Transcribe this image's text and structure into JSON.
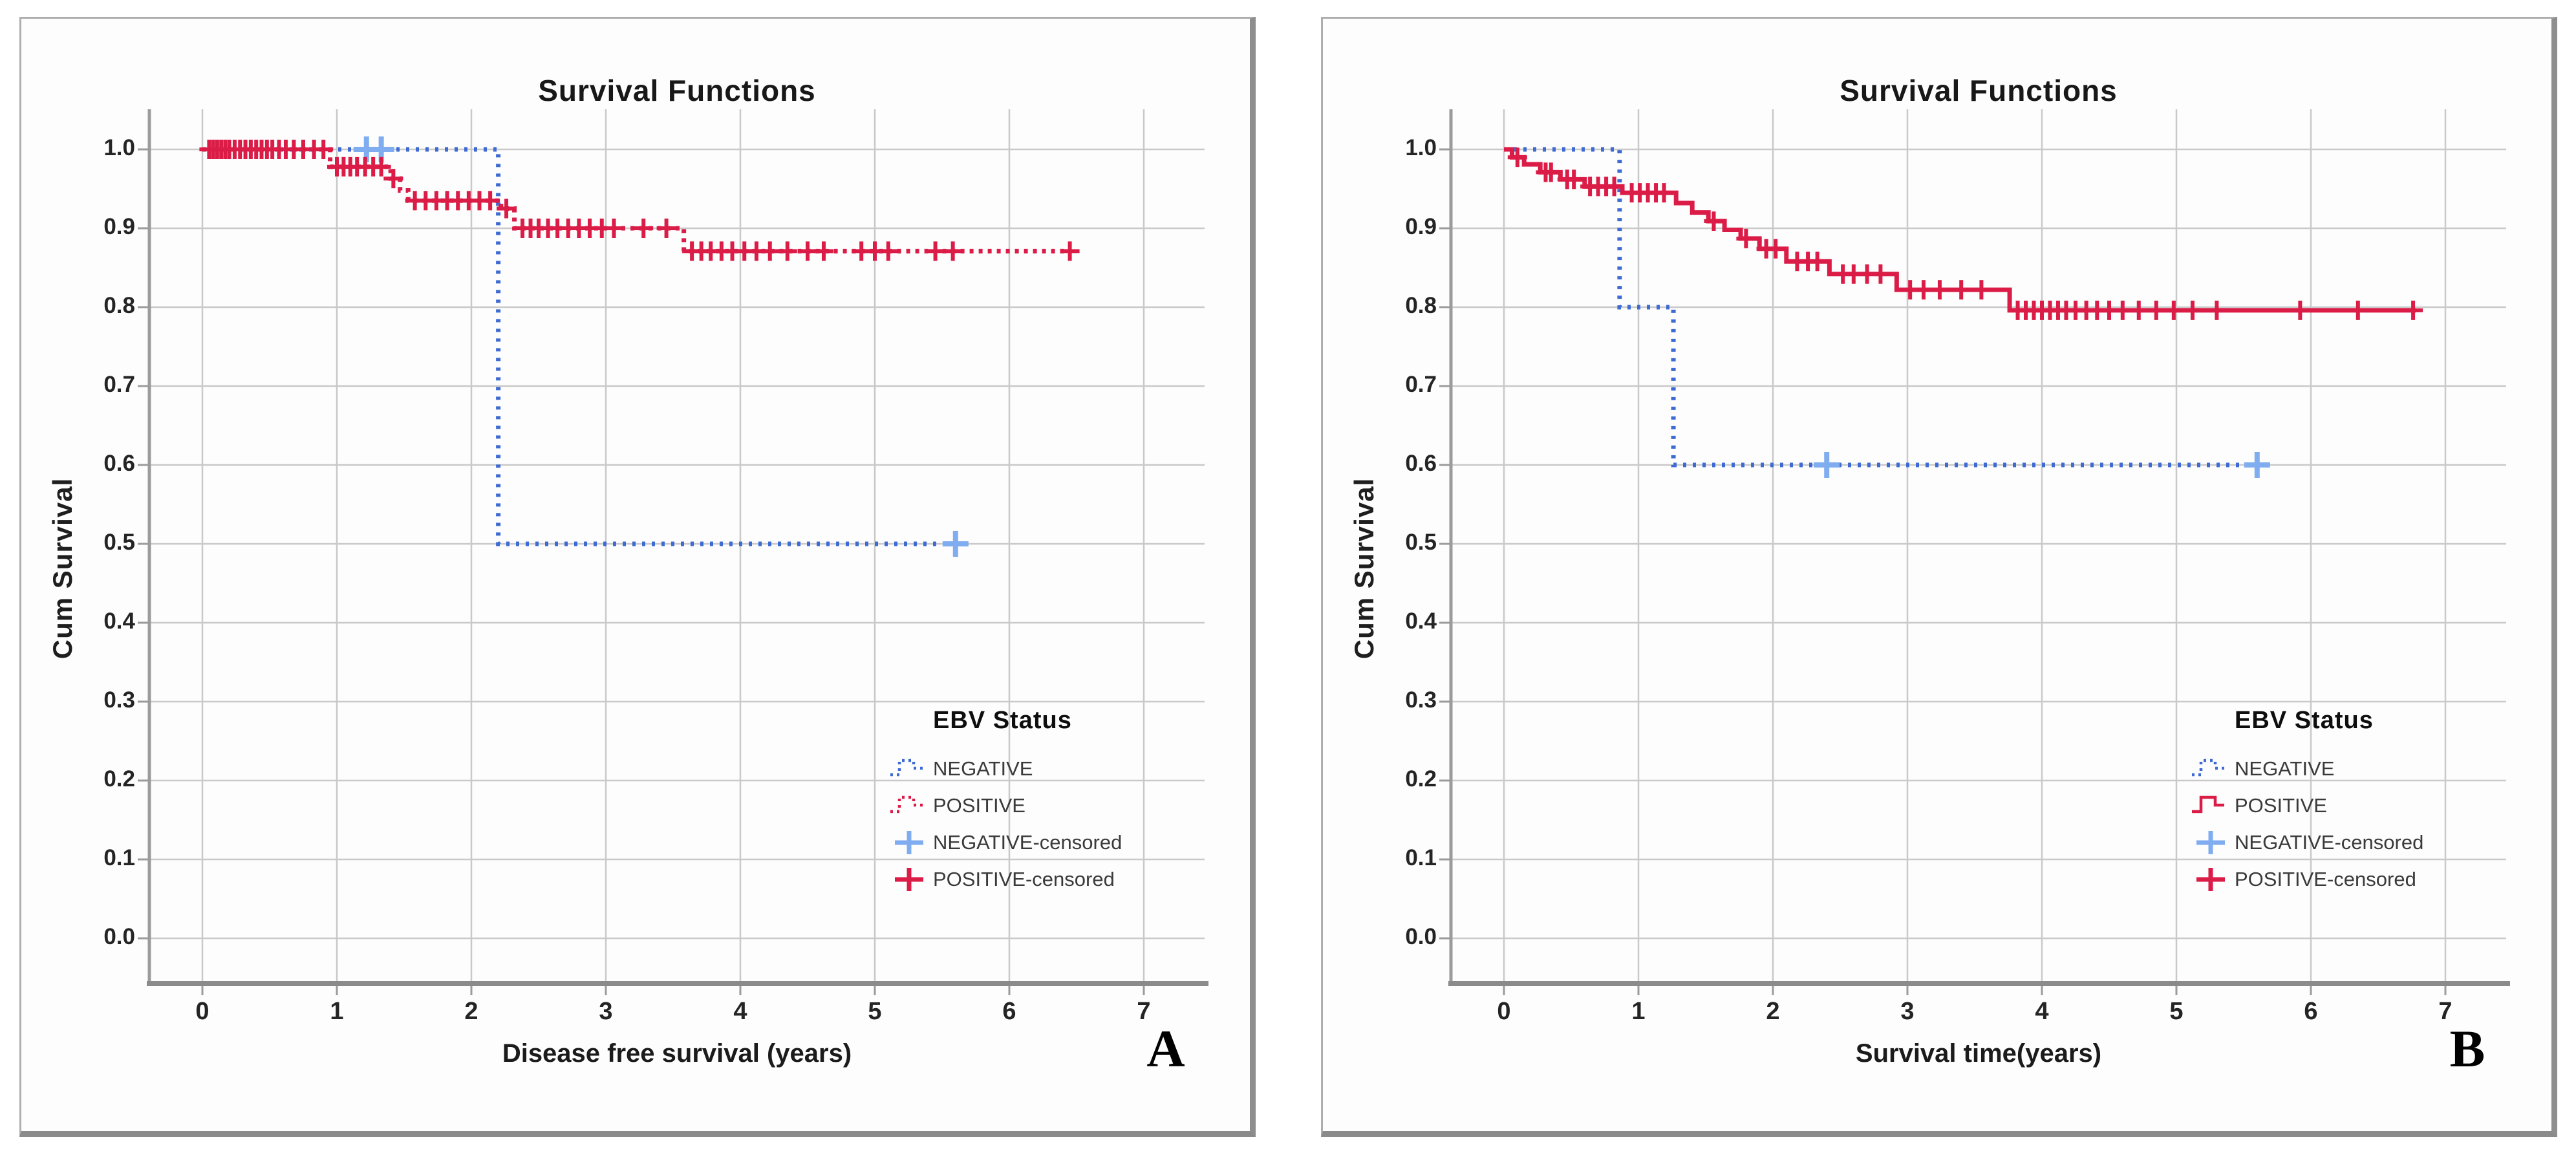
{
  "page": {
    "background": "#ffffff"
  },
  "chart_data": [
    {
      "type": "line",
      "subtype": "kaplan-meier-step",
      "panel_letter": "A",
      "title": "Survival Functions",
      "xlabel": "Disease free survival (years)",
      "ylabel": "Cum Survival",
      "xlim": [
        -0.4,
        7.45
      ],
      "ylim": [
        -0.06,
        1.05
      ],
      "grid": true,
      "xticks": [
        0,
        1,
        2,
        3,
        4,
        5,
        6,
        7
      ],
      "xtick_labels": [
        "0",
        "1",
        "2",
        "3",
        "4",
        "5",
        "6",
        "7"
      ],
      "yticks": [
        {
          "value": 1.0,
          "label": "1.0"
        },
        {
          "value": 0.9,
          "label": "0.9"
        },
        {
          "value": 0.8,
          "label": "0.8"
        },
        {
          "value": 0.7,
          "label": "0.7"
        },
        {
          "value": 0.6,
          "label": "0.6"
        },
        {
          "value": 0.5,
          "label": "0.5"
        },
        {
          "value": 0.4,
          "label": "0.4"
        },
        {
          "value": 0.3,
          "label": "0.3"
        },
        {
          "value": 0.2,
          "label": "0.2"
        },
        {
          "value": 0.1,
          "label": "0.1"
        },
        {
          "value": 0.0,
          "label": "0.0"
        }
      ],
      "colors": {
        "grid": "#c9c9c9",
        "axis": "#9b9b9b",
        "axis_dark": "#8b8b8b"
      },
      "legend": {
        "title": "EBV Status",
        "position": "lower right",
        "entries": [
          {
            "label": "NEGATIVE",
            "glyph": "step-line",
            "dash": "dotted",
            "color": "#3d6bd3"
          },
          {
            "label": "POSITIVE",
            "glyph": "step-line",
            "dash": "dotted",
            "color": "#da1c47"
          },
          {
            "label": "NEGATIVE-censored",
            "glyph": "plus",
            "color": "#7fadf0"
          },
          {
            "label": "POSITIVE-censored",
            "glyph": "plus",
            "color": "#da1c47"
          }
        ]
      },
      "series": [
        {
          "name": "NEGATIVE",
          "color": "#3d6bd3",
          "dash": "dotted",
          "dash_array": "5 10",
          "line_width": 7,
          "censor_color": "#7fadf0",
          "censor_arm": 20,
          "censor_stroke": 8,
          "steps": [
            [
              0,
              1.0
            ],
            [
              2.2,
              0.5
            ],
            [
              5.6,
              0.5
            ]
          ],
          "censored": [
            [
              1.22,
              1.0
            ],
            [
              1.33,
              1.0
            ],
            [
              5.6,
              0.5
            ]
          ]
        },
        {
          "name": "POSITIVE",
          "color": "#da1c47",
          "dash": "dotted",
          "dash_array": "6 8",
          "line_width": 7,
          "censor_color": "#da1c47",
          "censor_arm": 15,
          "censor_stroke": 6,
          "steps": [
            [
              0,
              1.0
            ],
            [
              0.95,
              0.978
            ],
            [
              1.4,
              0.963
            ],
            [
              1.47,
              0.948
            ],
            [
              1.53,
              0.935
            ],
            [
              2.22,
              0.925
            ],
            [
              2.32,
              0.9
            ],
            [
              3.58,
              0.871
            ],
            [
              6.45,
              0.871
            ]
          ],
          "censored": [
            [
              0.05,
              1.0
            ],
            [
              0.08,
              1.0
            ],
            [
              0.11,
              1.0
            ],
            [
              0.14,
              1.0
            ],
            [
              0.17,
              1.0
            ],
            [
              0.2,
              1.0
            ],
            [
              0.24,
              1.0
            ],
            [
              0.28,
              1.0
            ],
            [
              0.32,
              1.0
            ],
            [
              0.36,
              1.0
            ],
            [
              0.4,
              1.0
            ],
            [
              0.44,
              1.0
            ],
            [
              0.48,
              1.0
            ],
            [
              0.52,
              1.0
            ],
            [
              0.57,
              1.0
            ],
            [
              0.62,
              1.0
            ],
            [
              0.68,
              1.0
            ],
            [
              0.75,
              1.0
            ],
            [
              0.83,
              1.0
            ],
            [
              0.9,
              1.0
            ],
            [
              1.0,
              0.978
            ],
            [
              1.05,
              0.978
            ],
            [
              1.1,
              0.978
            ],
            [
              1.15,
              0.978
            ],
            [
              1.21,
              0.978
            ],
            [
              1.27,
              0.978
            ],
            [
              1.33,
              0.978
            ],
            [
              1.42,
              0.963
            ],
            [
              1.58,
              0.935
            ],
            [
              1.66,
              0.935
            ],
            [
              1.74,
              0.935
            ],
            [
              1.82,
              0.935
            ],
            [
              1.9,
              0.935
            ],
            [
              1.98,
              0.935
            ],
            [
              2.06,
              0.935
            ],
            [
              2.14,
              0.935
            ],
            [
              2.26,
              0.925
            ],
            [
              2.38,
              0.9
            ],
            [
              2.44,
              0.9
            ],
            [
              2.5,
              0.9
            ],
            [
              2.57,
              0.9
            ],
            [
              2.64,
              0.9
            ],
            [
              2.72,
              0.9
            ],
            [
              2.8,
              0.9
            ],
            [
              2.88,
              0.9
            ],
            [
              2.97,
              0.9
            ],
            [
              3.06,
              0.9
            ],
            [
              3.28,
              0.9
            ],
            [
              3.45,
              0.9
            ],
            [
              3.64,
              0.871
            ],
            [
              3.71,
              0.871
            ],
            [
              3.78,
              0.871
            ],
            [
              3.86,
              0.871
            ],
            [
              3.94,
              0.871
            ],
            [
              4.03,
              0.871
            ],
            [
              4.12,
              0.871
            ],
            [
              4.22,
              0.871
            ],
            [
              4.35,
              0.871
            ],
            [
              4.5,
              0.871
            ],
            [
              4.62,
              0.871
            ],
            [
              4.9,
              0.871
            ],
            [
              5.0,
              0.871
            ],
            [
              5.1,
              0.871
            ],
            [
              5.45,
              0.871
            ],
            [
              5.58,
              0.871
            ],
            [
              6.45,
              0.871
            ]
          ]
        }
      ]
    },
    {
      "type": "line",
      "subtype": "kaplan-meier-step",
      "panel_letter": "B",
      "title": "Survival Functions",
      "xlabel": "Survival time(years)",
      "ylabel": "Cum Survival",
      "xlim": [
        -0.4,
        7.45
      ],
      "ylim": [
        -0.06,
        1.05
      ],
      "grid": true,
      "xticks": [
        0,
        1,
        2,
        3,
        4,
        5,
        6,
        7
      ],
      "xtick_labels": [
        "0",
        "1",
        "2",
        "3",
        "4",
        "5",
        "6",
        "7"
      ],
      "yticks": [
        {
          "value": 1.0,
          "label": "1.0"
        },
        {
          "value": 0.9,
          "label": "0.9"
        },
        {
          "value": 0.8,
          "label": "0.8"
        },
        {
          "value": 0.7,
          "label": "0.7"
        },
        {
          "value": 0.6,
          "label": "0.6"
        },
        {
          "value": 0.5,
          "label": "0.5"
        },
        {
          "value": 0.4,
          "label": "0.4"
        },
        {
          "value": 0.3,
          "label": "0.3"
        },
        {
          "value": 0.2,
          "label": "0.2"
        },
        {
          "value": 0.1,
          "label": "0.1"
        },
        {
          "value": 0.0,
          "label": "0.0"
        }
      ],
      "colors": {
        "grid": "#c9c9c9",
        "axis": "#9b9b9b",
        "axis_dark": "#8b8b8b"
      },
      "legend": {
        "title": "EBV Status",
        "position": "lower right",
        "entries": [
          {
            "label": "NEGATIVE",
            "glyph": "step-line",
            "dash": "dotted",
            "color": "#3d6bd3"
          },
          {
            "label": "POSITIVE",
            "glyph": "step-line",
            "dash": "solid",
            "color": "#da1c47"
          },
          {
            "label": "NEGATIVE-censored",
            "glyph": "plus",
            "color": "#7fadf0"
          },
          {
            "label": "POSITIVE-censored",
            "glyph": "plus",
            "color": "#da1c47"
          }
        ]
      },
      "series": [
        {
          "name": "NEGATIVE",
          "color": "#3d6bd3",
          "dash": "dotted",
          "dash_array": "5 10",
          "line_width": 7,
          "censor_color": "#7fadf0",
          "censor_arm": 20,
          "censor_stroke": 8,
          "steps": [
            [
              0,
              1.0
            ],
            [
              0.86,
              0.8
            ],
            [
              1.26,
              0.6
            ],
            [
              5.6,
              0.6
            ]
          ],
          "censored": [
            [
              2.4,
              0.6
            ],
            [
              5.6,
              0.6
            ]
          ]
        },
        {
          "name": "POSITIVE",
          "color": "#da1c47",
          "dash": "solid",
          "line_width": 7,
          "censor_color": "#da1c47",
          "censor_arm": 15,
          "censor_stroke": 6,
          "steps": [
            [
              0,
              1.0
            ],
            [
              0.06,
              0.99
            ],
            [
              0.15,
              0.981
            ],
            [
              0.27,
              0.971
            ],
            [
              0.42,
              0.962
            ],
            [
              0.6,
              0.953
            ],
            [
              0.88,
              0.945
            ],
            [
              1.28,
              0.932
            ],
            [
              1.4,
              0.92
            ],
            [
              1.52,
              0.909
            ],
            [
              1.64,
              0.898
            ],
            [
              1.76,
              0.887
            ],
            [
              1.9,
              0.874
            ],
            [
              2.1,
              0.858
            ],
            [
              2.42,
              0.842
            ],
            [
              2.92,
              0.822
            ],
            [
              3.76,
              0.796
            ],
            [
              6.78,
              0.796
            ]
          ],
          "censored": [
            [
              0.1,
              0.99
            ],
            [
              0.31,
              0.971
            ],
            [
              0.35,
              0.971
            ],
            [
              0.47,
              0.962
            ],
            [
              0.52,
              0.962
            ],
            [
              0.64,
              0.953
            ],
            [
              0.7,
              0.953
            ],
            [
              0.76,
              0.953
            ],
            [
              0.82,
              0.953
            ],
            [
              0.95,
              0.945
            ],
            [
              1.01,
              0.945
            ],
            [
              1.07,
              0.945
            ],
            [
              1.13,
              0.945
            ],
            [
              1.19,
              0.945
            ],
            [
              1.56,
              0.909
            ],
            [
              1.8,
              0.887
            ],
            [
              1.95,
              0.874
            ],
            [
              2.02,
              0.874
            ],
            [
              2.18,
              0.858
            ],
            [
              2.26,
              0.858
            ],
            [
              2.33,
              0.858
            ],
            [
              2.52,
              0.842
            ],
            [
              2.6,
              0.842
            ],
            [
              2.7,
              0.842
            ],
            [
              2.8,
              0.842
            ],
            [
              3.02,
              0.822
            ],
            [
              3.12,
              0.822
            ],
            [
              3.24,
              0.822
            ],
            [
              3.4,
              0.822
            ],
            [
              3.55,
              0.822
            ],
            [
              3.82,
              0.796
            ],
            [
              3.88,
              0.796
            ],
            [
              3.94,
              0.796
            ],
            [
              4.0,
              0.796
            ],
            [
              4.06,
              0.796
            ],
            [
              4.12,
              0.796
            ],
            [
              4.18,
              0.796
            ],
            [
              4.25,
              0.796
            ],
            [
              4.33,
              0.796
            ],
            [
              4.41,
              0.796
            ],
            [
              4.5,
              0.796
            ],
            [
              4.6,
              0.796
            ],
            [
              4.72,
              0.796
            ],
            [
              4.85,
              0.796
            ],
            [
              4.98,
              0.796
            ],
            [
              5.12,
              0.796
            ],
            [
              5.3,
              0.796
            ],
            [
              5.92,
              0.796
            ],
            [
              6.35,
              0.796
            ],
            [
              6.76,
              0.796
            ]
          ]
        }
      ]
    }
  ]
}
